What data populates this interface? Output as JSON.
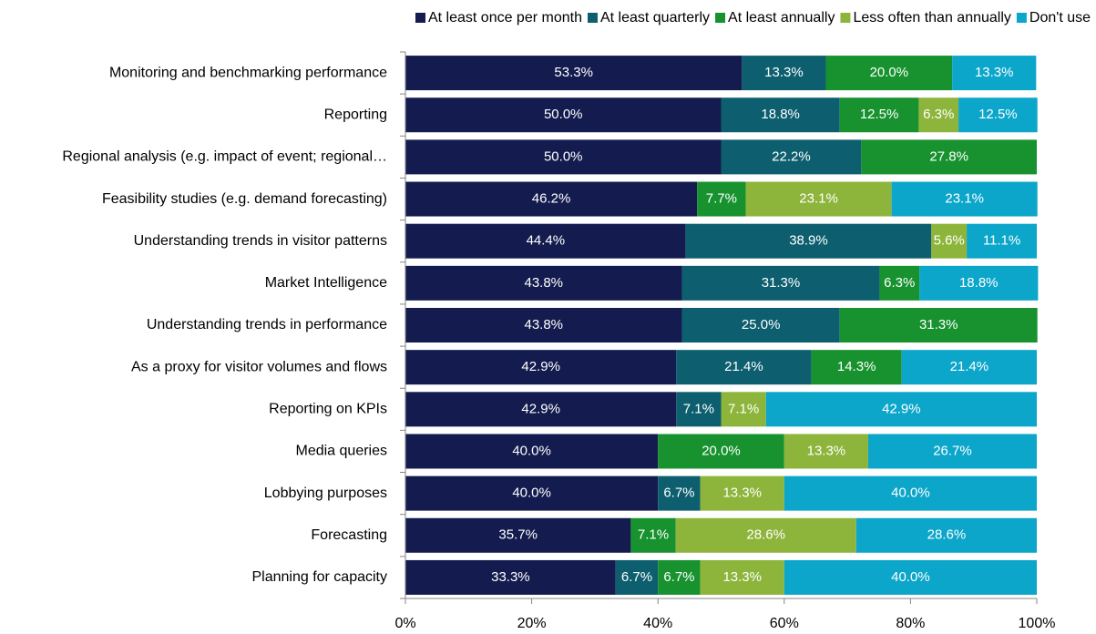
{
  "chart_data": {
    "type": "stacked-bar-horizontal",
    "categories": [
      "Monitoring and benchmarking performance",
      "Reporting",
      "Regional analysis (e.g. impact of event; regional…",
      "Feasibility studies (e.g. demand forecasting)",
      "Understanding trends in visitor patterns",
      "Market Intelligence",
      "Understanding trends in performance",
      "As a proxy for visitor volumes and flows",
      "Reporting on KPIs",
      "Media queries",
      "Lobbying purposes",
      "Forecasting",
      "Planning for capacity"
    ],
    "series": [
      {
        "name": "At least once per month",
        "color": "#141c4f",
        "values": [
          53.3,
          50.0,
          50.0,
          46.2,
          44.4,
          43.8,
          43.8,
          42.9,
          42.9,
          40.0,
          40.0,
          35.7,
          33.3
        ],
        "value_labels": [
          "53.3%",
          "50.0%",
          "50.0%",
          "46.2%",
          "44.4%",
          "43.8%",
          "43.8%",
          "42.9%",
          "42.9%",
          "40.0%",
          "40.0%",
          "35.7%",
          "33.3%"
        ]
      },
      {
        "name": "At least quarterly",
        "color": "#0d5f6f",
        "values": [
          13.3,
          18.8,
          22.2,
          null,
          38.9,
          31.3,
          25.0,
          21.4,
          7.1,
          null,
          6.7,
          null,
          6.7
        ],
        "value_labels": [
          "13.3%",
          "18.8%",
          "22.2%",
          null,
          "38.9%",
          "31.3%",
          "25.0%",
          "21.4%",
          "7.1%",
          null,
          "6.7%",
          null,
          "6.7%"
        ]
      },
      {
        "name": "At least annually",
        "color": "#17922f",
        "values": [
          20.0,
          12.5,
          27.8,
          7.7,
          null,
          6.3,
          31.3,
          14.3,
          null,
          20.0,
          null,
          7.1,
          6.7
        ],
        "value_labels": [
          "20.0%",
          "12.5%",
          "27.8%",
          "7.7%",
          null,
          "6.3%",
          "31.3%",
          "14.3%",
          null,
          "20.0%",
          null,
          "7.1%",
          "6.7%"
        ]
      },
      {
        "name": "Less often than annually",
        "color": "#8db53b",
        "values": [
          null,
          6.3,
          null,
          23.1,
          5.6,
          null,
          null,
          null,
          7.1,
          13.3,
          13.3,
          28.6,
          13.3
        ],
        "value_labels": [
          null,
          "6.3%",
          null,
          "23.1%",
          "5.6%",
          null,
          null,
          null,
          "7.1%",
          "13.3%",
          "13.3%",
          "28.6%",
          "13.3%"
        ]
      },
      {
        "name": "Don't use",
        "color": "#0ca6ca",
        "values": [
          13.3,
          12.5,
          null,
          23.1,
          11.1,
          18.8,
          null,
          21.4,
          42.9,
          26.7,
          40.0,
          28.6,
          40.0
        ],
        "value_labels": [
          "13.3%",
          "12.5%",
          null,
          "23.1%",
          "11.1%",
          "18.8%",
          null,
          "21.4%",
          "42.9%",
          "26.7%",
          "40.0%",
          "28.6%",
          "40.0%"
        ]
      }
    ],
    "xlim": [
      0,
      100
    ],
    "xticks": [
      {
        "value": 0,
        "label": "0%"
      },
      {
        "value": 20,
        "label": "20%"
      },
      {
        "value": 40,
        "label": "40%"
      },
      {
        "value": 60,
        "label": "60%"
      },
      {
        "value": 80,
        "label": "80%"
      },
      {
        "value": 100,
        "label": "100%"
      }
    ],
    "legend": "top-right"
  }
}
